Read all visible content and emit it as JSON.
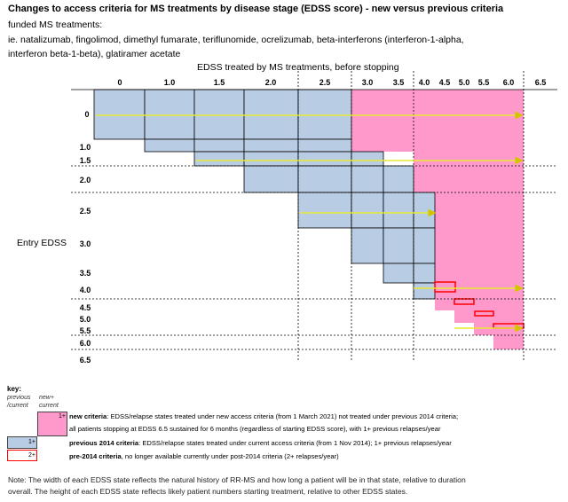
{
  "header": {
    "title": "Changes to access criteria for MS treatments by disease stage (EDSS score) - new versus previous criteria",
    "line1": "funded MS treatments:",
    "line2": "ie. natalizumab, fingolimod, dimethyl fumarate, teriflunomide, ocrelizumab, beta-interferons (interferon-1-alpha,",
    "line3": "interferon beta-1-beta), glatiramer acetate"
  },
  "diagram": {
    "x_axis_title": "EDSS treated by MS treatments, before stopping",
    "y_axis_title": "Entry EDSS",
    "x_labels": [
      "0",
      "1.0",
      "1.5",
      "2.0",
      "2.5",
      "3.0",
      "3.5",
      "4.0",
      "4.5",
      "5.0",
      "5.5",
      "6.0",
      "6.5"
    ],
    "y_labels": [
      "0",
      "1.0",
      "1.5",
      "2.0",
      "2.5",
      "3.0",
      "3.5",
      "4.0",
      "4.5",
      "5.0",
      "5.5",
      "6.0",
      "6.5"
    ],
    "colors": {
      "previous_criteria": "#b8cce4",
      "new_criteria": "#ff99cc",
      "pre2014_outline": "#ff0000",
      "arrow": "#e8e832",
      "grid_line": "#000000"
    }
  },
  "key": {
    "title": "key:",
    "col_prev": "previous /current",
    "col_new": "new+ current",
    "items": [
      {
        "tag": "1+",
        "bold": "new criteria",
        "text": ": EDSS/relapse states treated under new access criteria (from 1 March 2021) not treated under previous 2014 criteria;",
        "text2": "all patients stopping at EDSS 6.5 sustained for 6 months (regardless of starting EDSS score), with 1+ previous relapses/year"
      },
      {
        "tag": "1+",
        "bold": "previous 2014 criteria",
        "text": ": EDSS/relapse states treated under current access criteria (from 1 Nov 2014); 1+ previous relapses/year"
      },
      {
        "tag": "2+",
        "bold": "pre-2014 criteria",
        "text": ", no longer available currently under post-2014 criteria (2+ relapses/year)"
      }
    ]
  },
  "footer": {
    "note1": "Note: The width of each EDSS state reflects the natural history of RR-MS and how long a patient will be in that state, relative to duration",
    "note2": "overall. The height of each EDSS state reflects likely patient numbers starting treatment, relative to other EDSS states."
  }
}
